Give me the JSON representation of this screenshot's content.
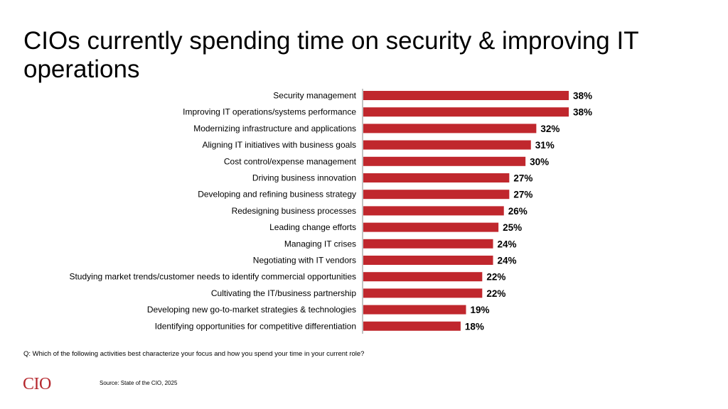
{
  "title": "CIOs currently spending time on security & improving IT operations",
  "question": "Q: Which of the following activities best characterize your focus and how you spend your time in your current role?",
  "source": "Source: State of the CIO, 2025",
  "logo_text": "CIO",
  "colors": {
    "bar": "#c0272d",
    "logo": "#b5272d"
  },
  "chart_data": {
    "type": "bar",
    "orientation": "horizontal",
    "categories": [
      "Security management",
      "Improving IT operations/systems performance",
      "Modernizing infrastructure and applications",
      "Aligning IT initiatives with business goals",
      "Cost control/expense management",
      "Driving business innovation",
      "Developing and refining business strategy",
      "Redesigning business processes",
      "Leading change efforts",
      "Managing IT crises",
      "Negotiating with IT vendors",
      "Studying market trends/customer needs to identify commercial opportunities",
      "Cultivating the IT/business partnership",
      "Developing new go-to-market strategies & technologies",
      "Identifying opportunities for competitive differentiation"
    ],
    "values": [
      38,
      38,
      32,
      31,
      30,
      27,
      27,
      26,
      25,
      24,
      24,
      22,
      22,
      19,
      18
    ],
    "value_labels": [
      "38%",
      "38%",
      "32%",
      "31%",
      "30%",
      "27%",
      "27%",
      "26%",
      "25%",
      "24%",
      "24%",
      "22%",
      "22%",
      "19%",
      "18%"
    ],
    "xlim": [
      0,
      38
    ],
    "grid": false,
    "legend": "none"
  }
}
